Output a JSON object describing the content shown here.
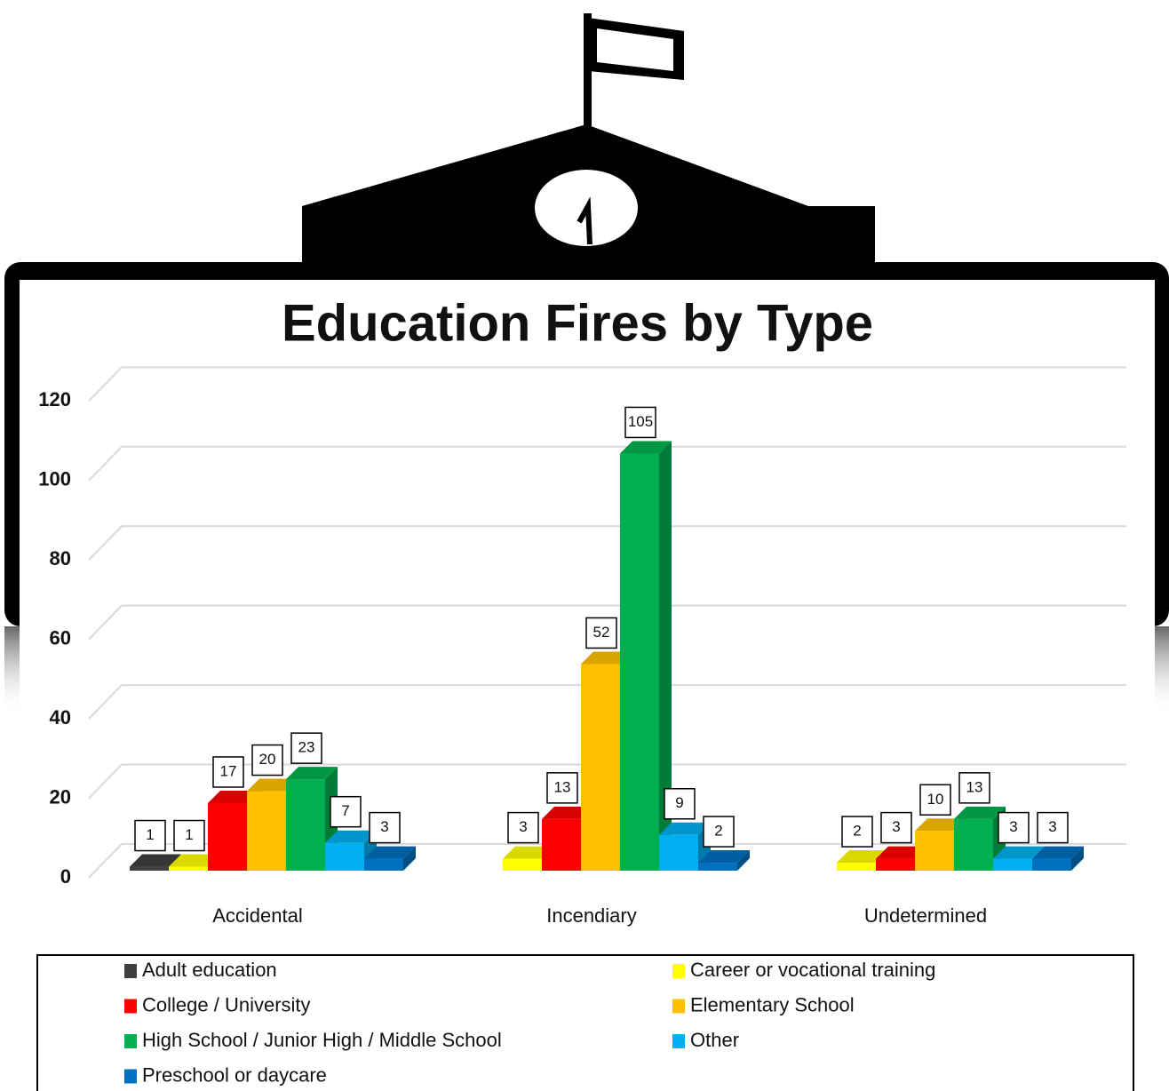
{
  "chart_data": {
    "type": "bar3d",
    "title": "Education Fires by Type",
    "categories": [
      "Accidental",
      "Incendiary",
      "Undetermined"
    ],
    "series": [
      {
        "name": "Adult education",
        "color": "#404040",
        "values": [
          1,
          null,
          null
        ]
      },
      {
        "name": "Career or vocational training",
        "color": "#ffff00",
        "values": [
          1,
          3,
          2
        ]
      },
      {
        "name": "College / University",
        "color": "#ff0000",
        "values": [
          17,
          13,
          3
        ]
      },
      {
        "name": "Elementary School",
        "color": "#ffc000",
        "values": [
          20,
          52,
          10
        ]
      },
      {
        "name": "High School / Junior High / Middle School",
        "color": "#00b050",
        "values": [
          23,
          105,
          13
        ]
      },
      {
        "name": "Other",
        "color": "#00b0f0",
        "values": [
          7,
          9,
          3
        ]
      },
      {
        "name": "Preschool or daycare",
        "color": "#0070c0",
        "values": [
          3,
          2,
          3
        ]
      }
    ],
    "ylim": [
      0,
      120
    ],
    "yticks": [
      0,
      20,
      40,
      60,
      80,
      100,
      120
    ],
    "grid": true,
    "legend": "bottom"
  }
}
